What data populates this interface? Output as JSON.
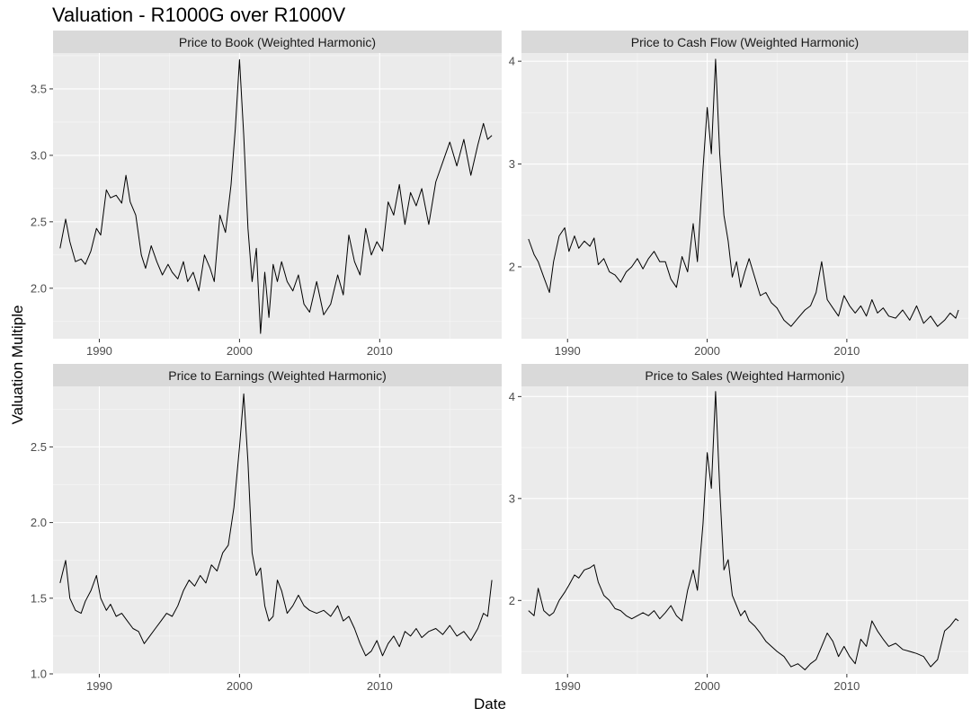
{
  "title": "Valuation - R1000G over R1000V",
  "xlabel": "Date",
  "ylabel": "Valuation Multiple",
  "chart_data": {
    "type": "line",
    "layout": "2x2 facet grid",
    "x_ticks": [
      "1990",
      "2000",
      "2010"
    ],
    "x_range": [
      1986.7,
      2018.7
    ],
    "grid": true,
    "line_color": "#000000",
    "panel_background": "#ebebeb",
    "strip_background": "#d9d9d9",
    "panels": [
      {
        "title": "Price to Book (Weighted Harmonic)",
        "ylim": [
          1.62,
          3.77
        ],
        "y_ticks": [
          "2.0",
          "2.5",
          "3.0",
          "3.5"
        ],
        "x": [
          1987.2,
          1987.6,
          1987.9,
          1988.3,
          1988.7,
          1989.0,
          1989.4,
          1989.8,
          1990.1,
          1990.5,
          1990.8,
          1991.2,
          1991.6,
          1991.9,
          1992.2,
          1992.6,
          1993.0,
          1993.3,
          1993.7,
          1994.1,
          1994.5,
          1994.9,
          1995.2,
          1995.6,
          1996.0,
          1996.3,
          1996.7,
          1997.1,
          1997.5,
          1997.9,
          1998.2,
          1998.6,
          1999.0,
          1999.4,
          1999.7,
          2000.0,
          2000.3,
          2000.6,
          2000.9,
          2001.2,
          2001.5,
          2001.8,
          2002.1,
          2002.4,
          2002.7,
          2003.0,
          2003.4,
          2003.8,
          2004.2,
          2004.6,
          2005.0,
          2005.5,
          2006.0,
          2006.5,
          2007.0,
          2007.4,
          2007.8,
          2008.2,
          2008.6,
          2009.0,
          2009.4,
          2009.8,
          2010.2,
          2010.6,
          2011.0,
          2011.4,
          2011.8,
          2012.2,
          2012.6,
          2013.0,
          2013.5,
          2014.0,
          2014.5,
          2015.0,
          2015.5,
          2016.0,
          2016.5,
          2017.0,
          2017.4,
          2017.7,
          2018.0
        ],
        "y": [
          2.3,
          2.52,
          2.35,
          2.2,
          2.22,
          2.18,
          2.28,
          2.45,
          2.4,
          2.74,
          2.68,
          2.7,
          2.64,
          2.85,
          2.65,
          2.55,
          2.25,
          2.15,
          2.32,
          2.2,
          2.1,
          2.18,
          2.12,
          2.07,
          2.2,
          2.05,
          2.12,
          1.98,
          2.25,
          2.15,
          2.05,
          2.55,
          2.42,
          2.78,
          3.2,
          3.72,
          3.15,
          2.45,
          2.05,
          2.3,
          1.66,
          2.12,
          1.78,
          2.18,
          2.05,
          2.2,
          2.05,
          1.98,
          2.1,
          1.88,
          1.82,
          2.05,
          1.8,
          1.88,
          2.1,
          1.95,
          2.4,
          2.2,
          2.1,
          2.45,
          2.25,
          2.35,
          2.28,
          2.65,
          2.55,
          2.78,
          2.48,
          2.72,
          2.62,
          2.75,
          2.48,
          2.8,
          2.95,
          3.1,
          2.92,
          3.12,
          2.85,
          3.08,
          3.24,
          3.12,
          3.15
        ]
      },
      {
        "title": "Price to Cash Flow (Weighted Harmonic)",
        "ylim": [
          1.3,
          4.08
        ],
        "y_ticks": [
          "2",
          "3",
          "4"
        ],
        "x": [
          1987.2,
          1987.6,
          1987.9,
          1988.3,
          1988.7,
          1989.0,
          1989.4,
          1989.8,
          1990.1,
          1990.5,
          1990.8,
          1991.2,
          1991.6,
          1991.9,
          1992.2,
          1992.6,
          1993.0,
          1993.4,
          1993.8,
          1994.2,
          1994.6,
          1995.0,
          1995.4,
          1995.8,
          1996.2,
          1996.6,
          1997.0,
          1997.4,
          1997.8,
          1998.2,
          1998.6,
          1999.0,
          1999.3,
          1999.7,
          2000.0,
          2000.3,
          2000.6,
          2000.9,
          2001.2,
          2001.5,
          2001.8,
          2002.1,
          2002.4,
          2002.7,
          2003.0,
          2003.4,
          2003.8,
          2004.2,
          2004.6,
          2005.0,
          2005.5,
          2006.0,
          2006.5,
          2007.0,
          2007.4,
          2007.8,
          2008.2,
          2008.6,
          2009.0,
          2009.4,
          2009.8,
          2010.2,
          2010.6,
          2011.0,
          2011.4,
          2011.8,
          2012.2,
          2012.6,
          2013.0,
          2013.5,
          2014.0,
          2014.5,
          2015.0,
          2015.5,
          2016.0,
          2016.5,
          2017.0,
          2017.4,
          2017.8,
          2018.0
        ],
        "y": [
          2.27,
          2.12,
          2.05,
          1.9,
          1.75,
          2.05,
          2.3,
          2.38,
          2.15,
          2.3,
          2.18,
          2.25,
          2.2,
          2.28,
          2.02,
          2.08,
          1.95,
          1.92,
          1.85,
          1.95,
          2.0,
          2.08,
          1.98,
          2.08,
          2.15,
          2.05,
          2.05,
          1.88,
          1.8,
          2.1,
          1.95,
          2.42,
          2.05,
          2.95,
          3.55,
          3.1,
          4.02,
          3.1,
          2.5,
          2.25,
          1.9,
          2.05,
          1.8,
          1.95,
          2.08,
          1.9,
          1.72,
          1.75,
          1.65,
          1.6,
          1.48,
          1.42,
          1.5,
          1.58,
          1.62,
          1.75,
          2.05,
          1.68,
          1.6,
          1.52,
          1.72,
          1.62,
          1.55,
          1.62,
          1.52,
          1.68,
          1.55,
          1.6,
          1.52,
          1.5,
          1.58,
          1.48,
          1.62,
          1.45,
          1.52,
          1.42,
          1.48,
          1.55,
          1.5,
          1.58
        ]
      },
      {
        "title": "Price to Earnings (Weighted Harmonic)",
        "ylim": [
          1.0,
          2.9
        ],
        "y_ticks": [
          "1.0",
          "1.5",
          "2.0",
          "2.5"
        ],
        "x": [
          1987.2,
          1987.6,
          1987.9,
          1988.3,
          1988.7,
          1989.0,
          1989.4,
          1989.8,
          1990.1,
          1990.5,
          1990.8,
          1991.2,
          1991.6,
          1992.0,
          1992.4,
          1992.8,
          1993.2,
          1993.6,
          1994.0,
          1994.4,
          1994.8,
          1995.2,
          1995.6,
          1996.0,
          1996.4,
          1996.8,
          1997.2,
          1997.6,
          1998.0,
          1998.4,
          1998.8,
          1999.2,
          1999.6,
          2000.0,
          2000.3,
          2000.6,
          2000.9,
          2001.2,
          2001.5,
          2001.8,
          2002.1,
          2002.4,
          2002.7,
          2003.0,
          2003.4,
          2003.8,
          2004.2,
          2004.6,
          2005.0,
          2005.5,
          2006.0,
          2006.5,
          2007.0,
          2007.4,
          2007.8,
          2008.2,
          2008.6,
          2009.0,
          2009.4,
          2009.8,
          2010.2,
          2010.6,
          2011.0,
          2011.4,
          2011.8,
          2012.2,
          2012.6,
          2013.0,
          2013.5,
          2014.0,
          2014.5,
          2015.0,
          2015.5,
          2016.0,
          2016.5,
          2017.0,
          2017.4,
          2017.7,
          2018.0
        ],
        "y": [
          1.6,
          1.75,
          1.5,
          1.42,
          1.4,
          1.48,
          1.55,
          1.65,
          1.5,
          1.42,
          1.46,
          1.38,
          1.4,
          1.35,
          1.3,
          1.28,
          1.2,
          1.25,
          1.3,
          1.35,
          1.4,
          1.38,
          1.45,
          1.55,
          1.62,
          1.58,
          1.65,
          1.6,
          1.72,
          1.68,
          1.8,
          1.85,
          2.1,
          2.5,
          2.85,
          2.4,
          1.8,
          1.65,
          1.7,
          1.45,
          1.35,
          1.38,
          1.62,
          1.55,
          1.4,
          1.45,
          1.52,
          1.45,
          1.42,
          1.4,
          1.42,
          1.38,
          1.45,
          1.35,
          1.38,
          1.3,
          1.2,
          1.12,
          1.15,
          1.22,
          1.12,
          1.2,
          1.25,
          1.18,
          1.28,
          1.25,
          1.3,
          1.24,
          1.28,
          1.3,
          1.26,
          1.32,
          1.25,
          1.28,
          1.22,
          1.3,
          1.4,
          1.38,
          1.62
        ]
      },
      {
        "title": "Price to Sales (Weighted Harmonic)",
        "ylim": [
          1.28,
          4.1
        ],
        "y_ticks": [
          "2",
          "3",
          "4"
        ],
        "x": [
          1987.2,
          1987.6,
          1987.9,
          1988.3,
          1988.7,
          1989.0,
          1989.4,
          1989.8,
          1990.1,
          1990.5,
          1990.8,
          1991.2,
          1991.6,
          1991.9,
          1992.2,
          1992.6,
          1993.0,
          1993.4,
          1993.8,
          1994.2,
          1994.6,
          1995.0,
          1995.4,
          1995.8,
          1996.2,
          1996.6,
          1997.0,
          1997.4,
          1997.8,
          1998.2,
          1998.6,
          1999.0,
          1999.3,
          1999.7,
          2000.0,
          2000.3,
          2000.6,
          2000.9,
          2001.2,
          2001.5,
          2001.8,
          2002.1,
          2002.4,
          2002.7,
          2003.0,
          2003.4,
          2003.8,
          2004.2,
          2004.6,
          2005.0,
          2005.5,
          2006.0,
          2006.5,
          2007.0,
          2007.4,
          2007.8,
          2008.2,
          2008.6,
          2009.0,
          2009.4,
          2009.8,
          2010.2,
          2010.6,
          2011.0,
          2011.4,
          2011.8,
          2012.2,
          2012.6,
          2013.0,
          2013.5,
          2014.0,
          2014.5,
          2015.0,
          2015.5,
          2016.0,
          2016.5,
          2017.0,
          2017.4,
          2017.8,
          2018.0
        ],
        "y": [
          1.9,
          1.85,
          2.12,
          1.9,
          1.85,
          1.88,
          2.0,
          2.08,
          2.15,
          2.25,
          2.22,
          2.3,
          2.32,
          2.35,
          2.18,
          2.05,
          2.0,
          1.92,
          1.9,
          1.85,
          1.82,
          1.85,
          1.88,
          1.85,
          1.9,
          1.82,
          1.88,
          1.95,
          1.85,
          1.8,
          2.1,
          2.3,
          2.1,
          2.75,
          3.45,
          3.1,
          4.05,
          3.1,
          2.3,
          2.4,
          2.05,
          1.95,
          1.85,
          1.9,
          1.8,
          1.75,
          1.68,
          1.6,
          1.55,
          1.5,
          1.45,
          1.35,
          1.38,
          1.32,
          1.38,
          1.42,
          1.55,
          1.68,
          1.6,
          1.45,
          1.55,
          1.45,
          1.38,
          1.62,
          1.55,
          1.8,
          1.7,
          1.62,
          1.55,
          1.58,
          1.52,
          1.5,
          1.48,
          1.45,
          1.35,
          1.42,
          1.7,
          1.75,
          1.82,
          1.8
        ]
      }
    ]
  }
}
